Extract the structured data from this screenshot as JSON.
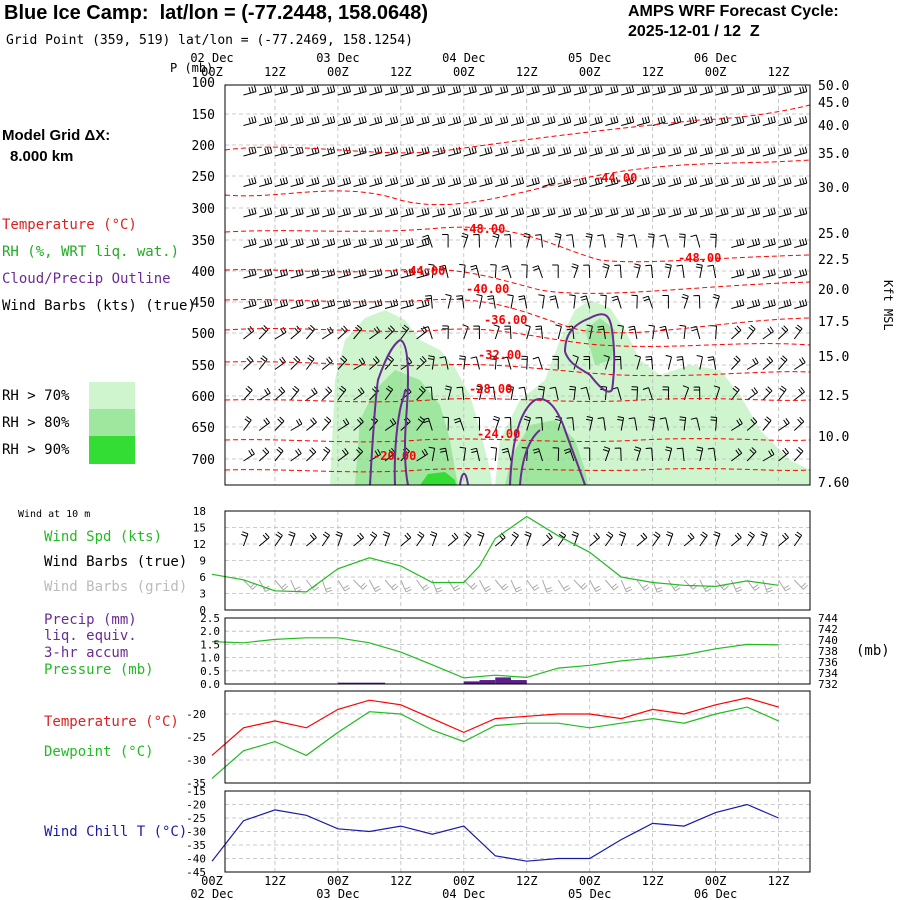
{
  "header": {
    "title": "Blue Ice Camp:  lat/lon = (-77.2448, 158.0648)",
    "grid_point": "Grid Point (359, 519) lat/lon = (-77.2469, 158.1254)",
    "cycle_label": "AMPS WRF Forecast Cycle:",
    "cycle_value": "2025-12-01 / 12  Z"
  },
  "left_legend": {
    "model_grid": "Model Grid ΔX:",
    "model_dx": "8.000 km",
    "temperature": "Temperature (°C)",
    "rh": "RH (%, WRT liq. wat.)",
    "cloud": "Cloud/Precip Outline",
    "wind_barbs": "Wind Barbs (kts) (true)",
    "rh_levels": [
      "RH > 70%",
      "RH > 80%",
      "RH > 90%"
    ]
  },
  "colors": {
    "temperature": "#ff0000",
    "rh70": "#cff5cf",
    "rh80": "#9fe69f",
    "rh90": "#33dd33",
    "cloud": "#6a2c91",
    "wind_spd": "#22bb22",
    "grid_barbs": "#aaaaaa",
    "wind_chill": "#1a1aa8",
    "precip": "#5a1f8a"
  },
  "time_axis": {
    "ticks": [
      "00Z",
      "12Z",
      "00Z",
      "12Z",
      "00Z",
      "12Z",
      "00Z",
      "12Z",
      "00Z",
      "12Z"
    ],
    "days": [
      "02 Dec",
      "03 Dec",
      "04 Dec",
      "05 Dec",
      "06 Dec"
    ]
  },
  "profile": {
    "ylabel": "P (mb)",
    "pressure_ticks": [
      "100",
      "150",
      "200",
      "250",
      "300",
      "350",
      "400",
      "450",
      "500",
      "550",
      "600",
      "650",
      "700"
    ],
    "kft_ticks": [
      "50.0",
      "45.0",
      "40.0",
      "35.0",
      "30.0",
      "25.0",
      "22.5",
      "20.0",
      "17.5",
      "15.0",
      "12.5",
      "10.0",
      "7.60"
    ],
    "right_label": "Kft MSL",
    "temp_labels": [
      "-44.00",
      "-48.00",
      "-48.00",
      "-44.00",
      "-40.00",
      "-36.00",
      "-32.00",
      "-28.00",
      "-24.00",
      "-20.00"
    ]
  },
  "panels": {
    "wind10": {
      "small_label": "Wind at 10 m",
      "spd_label": "Wind Spd (kts)",
      "true_label": "Wind Barbs (true)",
      "grid_label": "Wind Barbs (grid)",
      "ticks": [
        "18",
        "15",
        "12",
        "9",
        "6",
        "3",
        "0"
      ]
    },
    "precip": {
      "label1": "Precip (mm)",
      "label2": "liq. equiv.",
      "label3": "3-hr accum",
      "label4": "Pressure (mb)",
      "left_ticks": [
        "2.5",
        "2.0",
        "1.5",
        "1.0",
        "0.5",
        "0.0"
      ],
      "right_ticks": [
        "744",
        "742",
        "740",
        "738",
        "736",
        "734",
        "732"
      ],
      "right_unit": "(mb)"
    },
    "temp": {
      "temp_label": "Temperature (°C)",
      "dew_label": "Dewpoint (°C)",
      "ticks": [
        "-20",
        "-25",
        "-30",
        "-35"
      ]
    },
    "chill": {
      "label": "Wind Chill T (°C)",
      "ticks": [
        "-15",
        "-20",
        "-25",
        "-30",
        "-35",
        "-40",
        "-45"
      ]
    }
  },
  "chart_data": [
    {
      "type": "line",
      "title": "Wind Spd (kts)",
      "x": [
        "02 Dec 00Z",
        "02 Dec 06Z",
        "02 Dec 12Z",
        "02 Dec 18Z",
        "03 Dec 00Z",
        "03 Dec 06Z",
        "03 Dec 12Z",
        "03 Dec 18Z",
        "04 Dec 00Z",
        "04 Dec 03Z",
        "04 Dec 06Z",
        "04 Dec 12Z",
        "04 Dec 18Z",
        "05 Dec 00Z",
        "05 Dec 06Z",
        "05 Dec 12Z",
        "05 Dec 18Z",
        "06 Dec 00Z",
        "06 Dec 06Z",
        "06 Dec 12Z"
      ],
      "series": [
        {
          "name": "Wind Spd (kts)",
          "values": [
            6.5,
            5.5,
            3.5,
            3.3,
            7.5,
            9.5,
            8,
            5,
            5,
            8,
            13,
            17,
            13.5,
            10.5,
            6,
            5,
            4.5,
            4.3,
            5.3,
            4.5
          ]
        }
      ],
      "ylim": [
        0,
        18
      ]
    },
    {
      "type": "line",
      "title": "Pressure (mb)",
      "x": [
        "02 Dec 00Z",
        "02 Dec 06Z",
        "02 Dec 12Z",
        "02 Dec 18Z",
        "03 Dec 00Z",
        "03 Dec 06Z",
        "03 Dec 12Z",
        "03 Dec 18Z",
        "04 Dec 00Z",
        "04 Dec 06Z",
        "04 Dec 12Z",
        "04 Dec 18Z",
        "05 Dec 00Z",
        "05 Dec 06Z",
        "05 Dec 12Z",
        "05 Dec 18Z",
        "06 Dec 00Z",
        "06 Dec 06Z",
        "06 Dec 12Z"
      ],
      "series": [
        {
          "name": "Pressure (mb)",
          "values": [
            739.7,
            739.5,
            740.1,
            740.4,
            740.4,
            739.5,
            737.8,
            735.5,
            733.1,
            733.6,
            733.2,
            734.9,
            735.4,
            736.2,
            736.7,
            737.3,
            738.4,
            739.2,
            739.1
          ]
        }
      ],
      "ylim": [
        732,
        744
      ]
    },
    {
      "type": "bar",
      "title": "Precip (mm) liq. equiv. 3-hr accum",
      "x": [
        "03 Dec 00Z",
        "03 Dec 03Z",
        "03 Dec 06Z",
        "04 Dec 00Z",
        "04 Dec 03Z",
        "04 Dec 06Z",
        "04 Dec 09Z"
      ],
      "values": [
        0.05,
        0.05,
        0.05,
        0.1,
        0.15,
        0.25,
        0.15
      ],
      "ylim": [
        0,
        2.5
      ]
    },
    {
      "type": "line",
      "title": "Temperature / Dewpoint (°C)",
      "x": [
        "02 Dec 00Z",
        "02 Dec 06Z",
        "02 Dec 12Z",
        "02 Dec 18Z",
        "03 Dec 00Z",
        "03 Dec 06Z",
        "03 Dec 12Z",
        "03 Dec 18Z",
        "04 Dec 00Z",
        "04 Dec 06Z",
        "04 Dec 12Z",
        "04 Dec 18Z",
        "05 Dec 00Z",
        "05 Dec 06Z",
        "05 Dec 12Z",
        "05 Dec 18Z",
        "06 Dec 00Z",
        "06 Dec 06Z",
        "06 Dec 12Z"
      ],
      "series": [
        {
          "name": "Temperature (°C)",
          "values": [
            -29,
            -23,
            -21.5,
            -23,
            -19,
            -17,
            -18,
            -21,
            -24,
            -21,
            -20.5,
            -20,
            -20,
            -21,
            -19,
            -20,
            -18,
            -16.5,
            -18.5
          ]
        },
        {
          "name": "Dewpoint (°C)",
          "values": [
            -34,
            -28,
            -26,
            -29,
            -24,
            -19.5,
            -20,
            -23.5,
            -26,
            -22.5,
            -22,
            -22,
            -23,
            -22,
            -21,
            -22,
            -20,
            -18.5,
            -21.5
          ]
        }
      ],
      "ylim": [
        -35,
        -15
      ]
    },
    {
      "type": "line",
      "title": "Wind Chill T (°C)",
      "x": [
        "02 Dec 00Z",
        "02 Dec 06Z",
        "02 Dec 12Z",
        "02 Dec 18Z",
        "03 Dec 00Z",
        "03 Dec 06Z",
        "03 Dec 12Z",
        "03 Dec 18Z",
        "04 Dec 00Z",
        "04 Dec 06Z",
        "04 Dec 12Z",
        "04 Dec 18Z",
        "05 Dec 00Z",
        "05 Dec 06Z",
        "05 Dec 12Z",
        "05 Dec 18Z",
        "06 Dec 00Z",
        "06 Dec 06Z",
        "06 Dec 12Z"
      ],
      "series": [
        {
          "name": "Wind Chill T (°C)",
          "values": [
            -41,
            -26,
            -22,
            -24,
            -29,
            -30,
            -28,
            -31,
            -28,
            -39,
            -41,
            -40,
            -40,
            -33,
            -27,
            -28,
            -23,
            -20,
            -25
          ]
        }
      ],
      "ylim": [
        -45,
        -15
      ]
    }
  ]
}
